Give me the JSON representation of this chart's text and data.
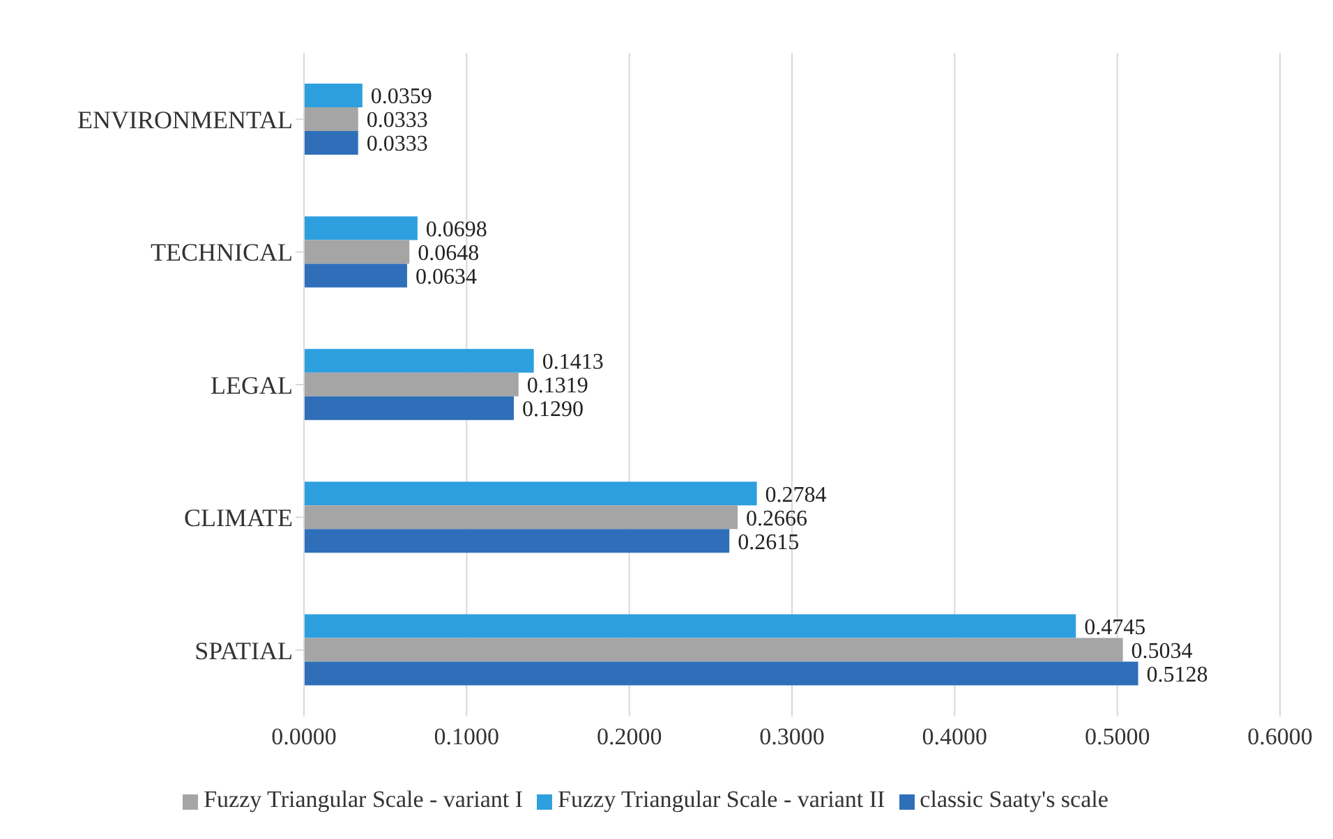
{
  "chart_data": {
    "type": "bar",
    "orientation": "horizontal",
    "categories": [
      "ENVIRONMENTAL",
      "TECHNICAL",
      "LEGAL",
      "CLIMATE",
      "SPATIAL"
    ],
    "series": [
      {
        "name": "Fuzzy Triangular Scale - variant II",
        "color": "#2e9fde",
        "values": [
          0.0359,
          0.0698,
          0.1413,
          0.2784,
          0.4745
        ],
        "value_labels": [
          "0.0359",
          "0.0698",
          "0.1413",
          "0.2784",
          "0.4745"
        ]
      },
      {
        "name": "Fuzzy Triangular Scale - variant I",
        "color": "#a5a5a5",
        "values": [
          0.0333,
          0.0648,
          0.1319,
          0.2666,
          0.5034
        ],
        "value_labels": [
          "0.0333",
          "0.0648",
          "0.1319",
          "0.2666",
          "0.5034"
        ]
      },
      {
        "name": "classic Saaty's scale",
        "color": "#2f6fba",
        "values": [
          0.0333,
          0.0634,
          0.129,
          0.2615,
          0.5128
        ],
        "value_labels": [
          "0.0333",
          "0.0634",
          "0.1290",
          "0.2615",
          "0.5128"
        ]
      }
    ],
    "xlim": [
      0,
      0.6
    ],
    "xticks": [
      {
        "value": 0,
        "label": "0.0000"
      },
      {
        "value": 0.1,
        "label": "0.1000"
      },
      {
        "value": 0.2,
        "label": "0.2000"
      },
      {
        "value": 0.3,
        "label": "0.3000"
      },
      {
        "value": 0.4,
        "label": "0.4000"
      },
      {
        "value": 0.5,
        "label": "0.5000"
      },
      {
        "value": 0.6,
        "label": "0.6000"
      }
    ],
    "grid": "x",
    "legend": "bottom"
  }
}
